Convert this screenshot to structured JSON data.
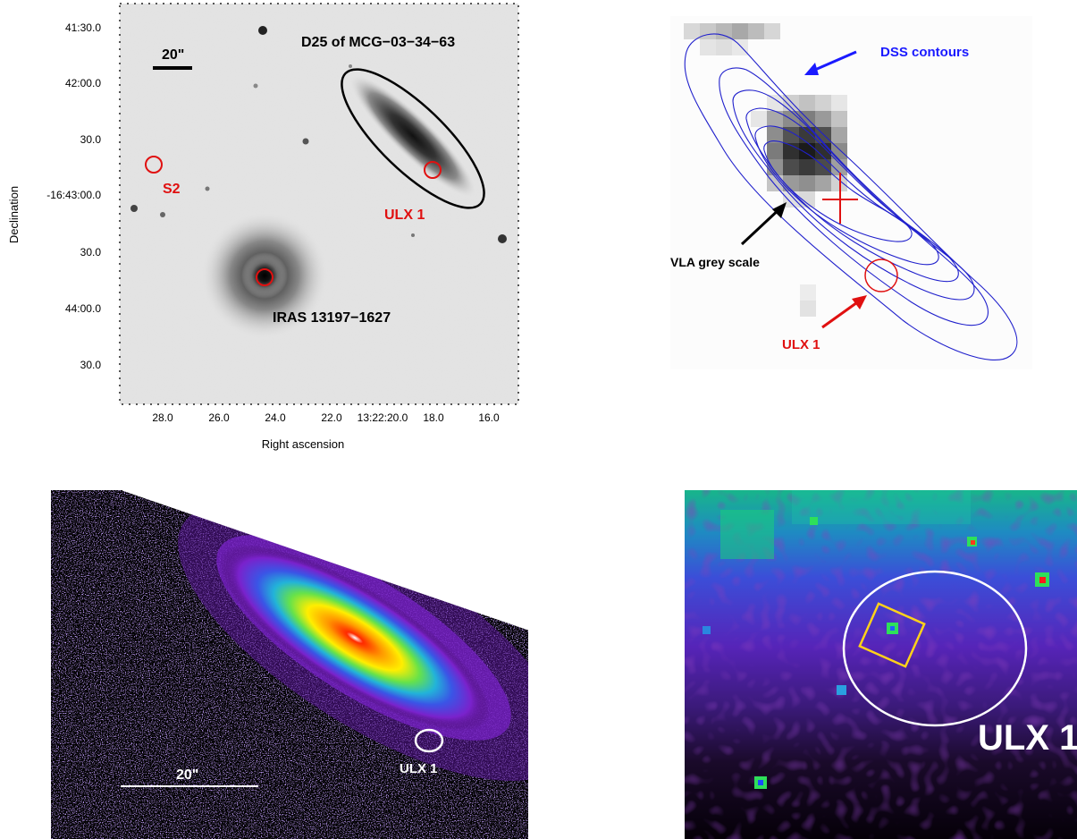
{
  "panel_a": {
    "scale_bar": "20\"",
    "galaxy_label": "D25 of MCG−03−34−63",
    "ulx_label": "ULX 1",
    "s2_label": "S2",
    "iras_label": "IRAS 13197−1627",
    "y_axis_label": "Declination",
    "x_axis_label": "Right ascension",
    "y_ticks": [
      "41:30.0",
      "42:00.0",
      "30.0",
      "-16:43:00.0",
      "30.0",
      "44:00.0",
      "30.0"
    ],
    "x_ticks": [
      "28.0",
      "26.0",
      "24.0",
      "22.0",
      "13:22:20.0",
      "18.0",
      "16.0"
    ]
  },
  "panel_b": {
    "dss_label": "DSS contours",
    "vla_label": "VLA grey scale",
    "ulx_label": "ULX 1",
    "colors": {
      "contour": "#2020cc",
      "ulx": "#e01010",
      "dss": "#1a1aff"
    }
  },
  "panel_c": {
    "scale_bar": "20\"",
    "ulx_label": "ULX 1"
  },
  "panel_d": {
    "ulx_label": "ULX 1",
    "colors": {
      "circle": "#ffffff",
      "box": "#ffd21a"
    }
  }
}
